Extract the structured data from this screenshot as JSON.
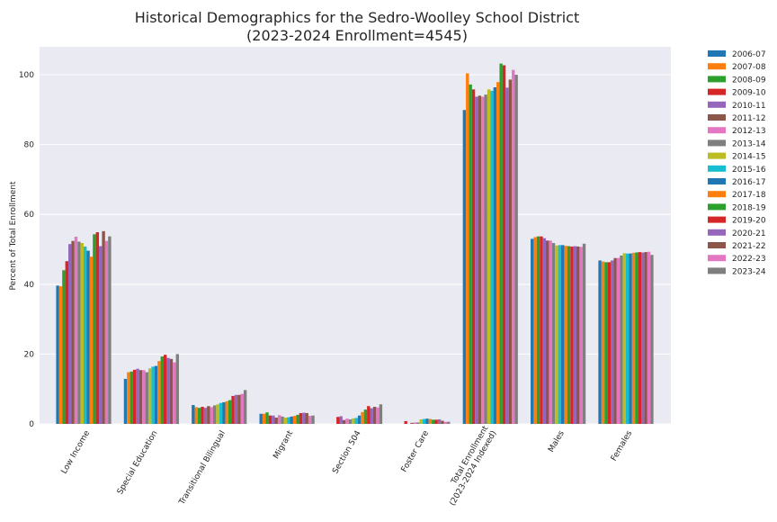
{
  "chart_data": {
    "type": "bar",
    "title": "Historical Demographics for the Sedro-Woolley School District",
    "subtitle": "(2023-2024 Enrollment=4545)",
    "xlabel": "",
    "ylabel": "Percent of Total Enrollment",
    "ylim": [
      0,
      108
    ],
    "yticks": [
      0,
      20,
      40,
      60,
      80,
      100
    ],
    "grid": true,
    "legend_position": "outside-right",
    "categories": [
      "Low Income",
      "Special Education",
      "Transitional Bilingual",
      "Migrant",
      "Section 504",
      "Foster Care",
      "Total Enrollment\n(2023-2024 Indexed)",
      "Males",
      "Females"
    ],
    "colors": [
      "#1f77b4",
      "#ff7f0e",
      "#2ca02c",
      "#d62728",
      "#9467bd",
      "#8c564b",
      "#e377c2",
      "#7f7f7f",
      "#bcbd22",
      "#17becf",
      "#1f77b4",
      "#ff7f0e",
      "#2ca02c",
      "#d62728",
      "#9467bd",
      "#8c564b",
      "#e377c2",
      "#7f7f7f"
    ],
    "series": [
      {
        "name": "2006-07",
        "values": [
          39.6,
          12.9,
          5.4,
          2.9,
          0,
          0,
          89.9,
          53.0,
          46.8
        ]
      },
      {
        "name": "2007-08",
        "values": [
          39.4,
          14.8,
          4.8,
          2.9,
          0,
          0,
          100.4,
          53.5,
          46.5
        ]
      },
      {
        "name": "2008-09",
        "values": [
          44.0,
          15.0,
          4.6,
          3.3,
          0,
          0,
          97.2,
          53.7,
          46.3
        ]
      },
      {
        "name": "2009-10",
        "values": [
          46.6,
          15.5,
          4.9,
          2.4,
          2.0,
          0.8,
          95.8,
          53.7,
          46.3
        ]
      },
      {
        "name": "2010-11",
        "values": [
          51.5,
          15.8,
          4.6,
          2.4,
          2.2,
          0,
          93.7,
          53.2,
          46.8
        ]
      },
      {
        "name": "2011-12",
        "values": [
          52.4,
          15.4,
          5.1,
          1.8,
          1.1,
          0.3,
          94.0,
          52.5,
          47.5
        ]
      },
      {
        "name": "2012-13",
        "values": [
          53.6,
          15.4,
          4.8,
          2.5,
          1.5,
          0.4,
          93.7,
          52.5,
          47.5
        ]
      },
      {
        "name": "2013-14",
        "values": [
          52.2,
          14.8,
          5.3,
          2.1,
          1.3,
          0.4,
          94.3,
          51.8,
          48.2
        ]
      },
      {
        "name": "2014-15",
        "values": [
          51.8,
          15.9,
          5.6,
          1.8,
          1.6,
          1.3,
          95.8,
          51.1,
          48.9
        ]
      },
      {
        "name": "2015-16",
        "values": [
          50.8,
          16.4,
          6.0,
          1.9,
          1.7,
          1.4,
          95.4,
          51.2,
          48.8
        ]
      },
      {
        "name": "2016-17",
        "values": [
          49.6,
          16.6,
          6.2,
          2.1,
          2.4,
          1.5,
          96.4,
          51.2,
          48.8
        ]
      },
      {
        "name": "2017-18",
        "values": [
          47.9,
          18.0,
          6.5,
          2.3,
          3.4,
          1.4,
          97.9,
          51.0,
          49.0
        ]
      },
      {
        "name": "2018-19",
        "values": [
          54.3,
          19.3,
          6.8,
          2.6,
          4.1,
          1.2,
          103.2,
          50.9,
          49.1
        ]
      },
      {
        "name": "2019-20",
        "values": [
          54.9,
          19.8,
          8.0,
          3.1,
          5.1,
          1.2,
          102.7,
          50.8,
          49.2
        ]
      },
      {
        "name": "2020-21",
        "values": [
          50.9,
          18.9,
          8.3,
          3.2,
          4.5,
          1.3,
          96.3,
          50.9,
          49.1
        ]
      },
      {
        "name": "2021-22",
        "values": [
          55.2,
          18.6,
          8.3,
          3.1,
          4.9,
          0.9,
          98.6,
          50.8,
          49.2
        ]
      },
      {
        "name": "2022-23",
        "values": [
          52.4,
          17.6,
          8.6,
          2.3,
          4.7,
          0.6,
          101.4,
          50.7,
          49.3
        ]
      },
      {
        "name": "2023-24",
        "values": [
          53.7,
          20.0,
          9.7,
          2.4,
          5.6,
          0.6,
          100.0,
          51.6,
          48.4
        ]
      }
    ]
  }
}
